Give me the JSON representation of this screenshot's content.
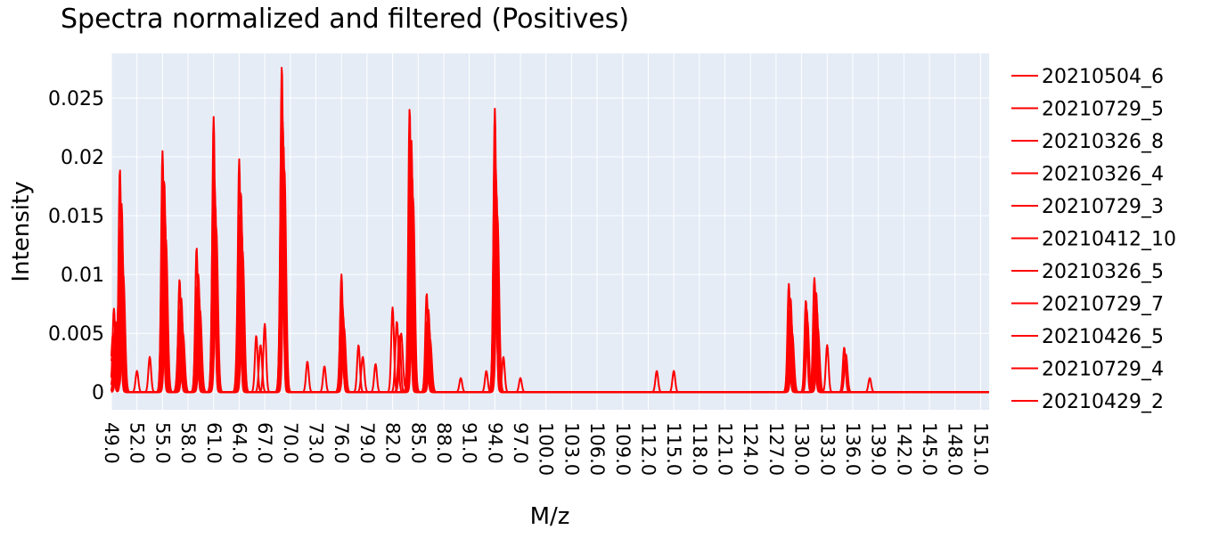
{
  "chart_data": {
    "type": "line",
    "title": "Spectra normalized and filtered (Positives)",
    "xlabel": "M/z",
    "ylabel": "Intensity",
    "xlim": [
      49.0,
      152.0
    ],
    "ylim": [
      -0.0015,
      0.0288
    ],
    "x_ticks": [
      "49.0",
      "52.0",
      "55.0",
      "58.0",
      "61.0",
      "64.0",
      "67.0",
      "70.0",
      "73.0",
      "76.0",
      "79.0",
      "82.0",
      "85.0",
      "88.0",
      "91.0",
      "94.0",
      "97.0",
      "100.0",
      "103.0",
      "106.0",
      "109.0",
      "112.0",
      "115.0",
      "118.0",
      "121.0",
      "124.0",
      "127.0",
      "130.0",
      "133.0",
      "136.0",
      "139.0",
      "142.0",
      "145.0",
      "148.0",
      "151.0"
    ],
    "y_ticks": [
      {
        "value": 0,
        "label": "0"
      },
      {
        "value": 0.005,
        "label": "0.005"
      },
      {
        "value": 0.01,
        "label": "0.01"
      },
      {
        "value": 0.015,
        "label": "0.015"
      },
      {
        "value": 0.02,
        "label": "0.02"
      },
      {
        "value": 0.025,
        "label": "0.025"
      }
    ],
    "grid": true,
    "legend_position": "right",
    "line_color": "#ff0000",
    "plot_bg": "#e5ecf6",
    "series": [
      {
        "name": "20210504_6",
        "peaks": [
          [
            49.3,
            0.0071
          ],
          [
            50.0,
            0.019
          ],
          [
            52.0,
            0.0018
          ],
          [
            53.5,
            0.003
          ],
          [
            55.0,
            0.0205
          ],
          [
            57.0,
            0.0096
          ],
          [
            59.0,
            0.0123
          ],
          [
            61.0,
            0.0234
          ],
          [
            64.0,
            0.0198
          ],
          [
            66.0,
            0.0048
          ],
          [
            67.0,
            0.0058
          ],
          [
            69.0,
            0.0278
          ],
          [
            72.0,
            0.0026
          ],
          [
            74.0,
            0.0022
          ],
          [
            76.0,
            0.01
          ],
          [
            78.0,
            0.004
          ],
          [
            80.0,
            0.0024
          ],
          [
            82.0,
            0.0072
          ],
          [
            84.0,
            0.0242
          ],
          [
            86.0,
            0.0084
          ],
          [
            90.0,
            0.0012
          ],
          [
            93.0,
            0.0018
          ],
          [
            94.0,
            0.0241
          ],
          [
            95.0,
            0.003
          ],
          [
            97.0,
            0.0012
          ],
          [
            113.0,
            0.0018
          ],
          [
            115.0,
            0.0018
          ],
          [
            128.5,
            0.0092
          ],
          [
            130.5,
            0.0078
          ],
          [
            131.5,
            0.0097
          ],
          [
            133.0,
            0.004
          ],
          [
            135.0,
            0.0038
          ],
          [
            138.0,
            0.0012
          ]
        ]
      },
      {
        "name": "20210729_5",
        "peaks": [
          [
            49.5,
            0.006
          ],
          [
            50.2,
            0.016
          ],
          [
            55.2,
            0.018
          ],
          [
            57.2,
            0.008
          ],
          [
            59.2,
            0.01
          ],
          [
            61.0,
            0.02
          ],
          [
            64.2,
            0.017
          ],
          [
            66.5,
            0.004
          ],
          [
            69.0,
            0.025
          ],
          [
            76.0,
            0.0085
          ],
          [
            78.5,
            0.003
          ],
          [
            82.5,
            0.006
          ],
          [
            84.2,
            0.0215
          ],
          [
            86.2,
            0.007
          ],
          [
            94.0,
            0.021
          ],
          [
            128.7,
            0.008
          ],
          [
            130.6,
            0.007
          ],
          [
            131.7,
            0.0085
          ],
          [
            135.2,
            0.0032
          ]
        ]
      },
      {
        "name": "20210326_8",
        "peaks": [
          [
            49.2,
            0.005
          ],
          [
            50.1,
            0.014
          ],
          [
            55.1,
            0.0165
          ],
          [
            57.0,
            0.007
          ],
          [
            59.1,
            0.009
          ],
          [
            61.1,
            0.018
          ],
          [
            64.0,
            0.015
          ],
          [
            69.1,
            0.023
          ],
          [
            76.1,
            0.0075
          ],
          [
            83.0,
            0.005
          ],
          [
            84.1,
            0.02
          ],
          [
            86.1,
            0.006
          ],
          [
            94.1,
            0.019
          ],
          [
            128.6,
            0.007
          ],
          [
            131.6,
            0.0075
          ],
          [
            135.1,
            0.0028
          ]
        ]
      },
      {
        "name": "20210326_4",
        "peaks": [
          [
            49.4,
            0.004
          ],
          [
            50.3,
            0.012
          ],
          [
            55.3,
            0.015
          ],
          [
            57.3,
            0.006
          ],
          [
            59.3,
            0.008
          ],
          [
            61.2,
            0.016
          ],
          [
            64.3,
            0.014
          ],
          [
            69.2,
            0.021
          ],
          [
            76.2,
            0.0065
          ],
          [
            82.8,
            0.0048
          ],
          [
            84.3,
            0.0185
          ],
          [
            86.3,
            0.0055
          ],
          [
            94.2,
            0.017
          ],
          [
            128.8,
            0.006
          ],
          [
            130.7,
            0.006
          ],
          [
            131.8,
            0.007
          ]
        ]
      },
      {
        "name": "20210729_3",
        "peaks": [
          [
            49.6,
            0.0035
          ],
          [
            50.0,
            0.011
          ],
          [
            55.0,
            0.014
          ],
          [
            57.1,
            0.0055
          ],
          [
            59.0,
            0.0075
          ],
          [
            61.0,
            0.015
          ],
          [
            64.1,
            0.013
          ],
          [
            69.0,
            0.02
          ],
          [
            76.0,
            0.006
          ],
          [
            84.0,
            0.0175
          ],
          [
            86.0,
            0.005
          ],
          [
            94.0,
            0.016
          ],
          [
            128.5,
            0.0055
          ],
          [
            131.5,
            0.006
          ]
        ]
      },
      {
        "name": "20210412_10",
        "peaks": [
          [
            49.1,
            0.003
          ],
          [
            50.4,
            0.01
          ],
          [
            55.4,
            0.013
          ],
          [
            57.4,
            0.005
          ],
          [
            59.4,
            0.007
          ],
          [
            61.3,
            0.014
          ],
          [
            64.4,
            0.012
          ],
          [
            69.3,
            0.019
          ],
          [
            76.3,
            0.0055
          ],
          [
            84.4,
            0.0165
          ],
          [
            86.4,
            0.0045
          ],
          [
            94.3,
            0.015
          ],
          [
            128.9,
            0.005
          ],
          [
            131.9,
            0.0055
          ]
        ]
      },
      {
        "name": "20210326_5",
        "peaks": [
          [
            49.5,
            0.0028
          ],
          [
            50.1,
            0.0095
          ],
          [
            55.1,
            0.012
          ],
          [
            57.2,
            0.0045
          ],
          [
            59.2,
            0.0065
          ],
          [
            61.1,
            0.013
          ],
          [
            64.2,
            0.011
          ],
          [
            69.1,
            0.018
          ],
          [
            76.1,
            0.005
          ],
          [
            84.2,
            0.0155
          ],
          [
            86.2,
            0.0042
          ],
          [
            94.1,
            0.014
          ],
          [
            128.6,
            0.0048
          ],
          [
            131.6,
            0.005
          ]
        ]
      },
      {
        "name": "20210729_7",
        "peaks": [
          [
            49.3,
            0.0025
          ],
          [
            50.2,
            0.009
          ],
          [
            55.2,
            0.011
          ],
          [
            57.0,
            0.0042
          ],
          [
            59.1,
            0.006
          ],
          [
            61.2,
            0.012
          ],
          [
            64.0,
            0.0105
          ],
          [
            69.2,
            0.017
          ],
          [
            76.2,
            0.0048
          ],
          [
            84.1,
            0.0145
          ],
          [
            86.1,
            0.004
          ],
          [
            94.2,
            0.013
          ],
          [
            128.7,
            0.0045
          ],
          [
            131.7,
            0.0048
          ]
        ]
      },
      {
        "name": "20210426_5",
        "peaks": [
          [
            49.2,
            0.0022
          ],
          [
            50.3,
            0.0085
          ],
          [
            55.3,
            0.0105
          ],
          [
            57.3,
            0.004
          ],
          [
            59.3,
            0.0058
          ],
          [
            61.0,
            0.0115
          ],
          [
            64.3,
            0.01
          ],
          [
            69.0,
            0.016
          ],
          [
            76.0,
            0.0045
          ],
          [
            84.3,
            0.014
          ],
          [
            86.3,
            0.0038
          ],
          [
            94.0,
            0.0125
          ],
          [
            128.8,
            0.0042
          ],
          [
            131.8,
            0.0045
          ]
        ]
      },
      {
        "name": "20210729_4",
        "peaks": [
          [
            49.4,
            0.002
          ],
          [
            50.0,
            0.008
          ],
          [
            55.0,
            0.01
          ],
          [
            57.1,
            0.0038
          ],
          [
            59.0,
            0.0055
          ],
          [
            61.1,
            0.011
          ],
          [
            64.1,
            0.0095
          ],
          [
            69.1,
            0.015
          ],
          [
            76.1,
            0.0042
          ],
          [
            84.0,
            0.0135
          ],
          [
            86.0,
            0.0036
          ],
          [
            94.1,
            0.012
          ],
          [
            128.5,
            0.004
          ],
          [
            131.5,
            0.0042
          ]
        ]
      },
      {
        "name": "20210429_2",
        "peaks": [
          [
            49.6,
            0.0018
          ],
          [
            50.4,
            0.0075
          ],
          [
            55.4,
            0.0095
          ],
          [
            57.4,
            0.0035
          ],
          [
            59.4,
            0.0052
          ],
          [
            61.3,
            0.0105
          ],
          [
            64.4,
            0.009
          ],
          [
            69.3,
            0.0145
          ],
          [
            76.3,
            0.004
          ],
          [
            84.4,
            0.013
          ],
          [
            86.4,
            0.0034
          ],
          [
            94.3,
            0.0115
          ],
          [
            128.9,
            0.0038
          ],
          [
            131.9,
            0.004
          ]
        ]
      }
    ]
  }
}
